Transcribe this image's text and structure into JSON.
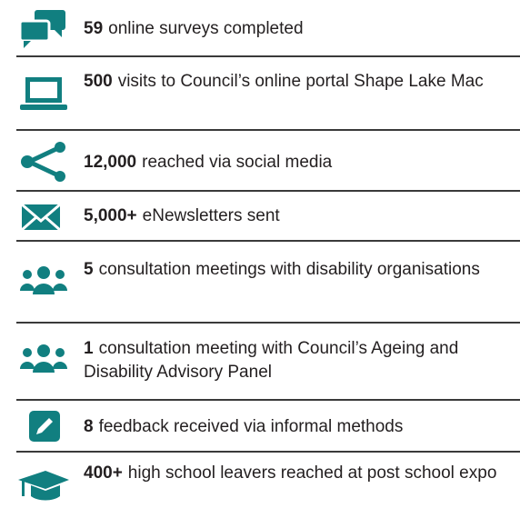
{
  "items": [
    {
      "number": "59",
      "text": "online surveys completed"
    },
    {
      "number": "500",
      "text": "visits to Council’s online portal Shape Lake Mac"
    },
    {
      "number": "12,000",
      "text": "reached via social media"
    },
    {
      "number": "5,000+",
      "text": "eNewsletters sent"
    },
    {
      "number": "5",
      "text": "consultation meetings with disability organisations"
    },
    {
      "number": "1",
      "text": "consultation meeting with Council’s Ageing and Disability Advisory Panel"
    },
    {
      "number": "8",
      "text": "feedback received via informal methods"
    },
    {
      "number": "400+",
      "text": "high school leavers reached at post school expo"
    }
  ]
}
